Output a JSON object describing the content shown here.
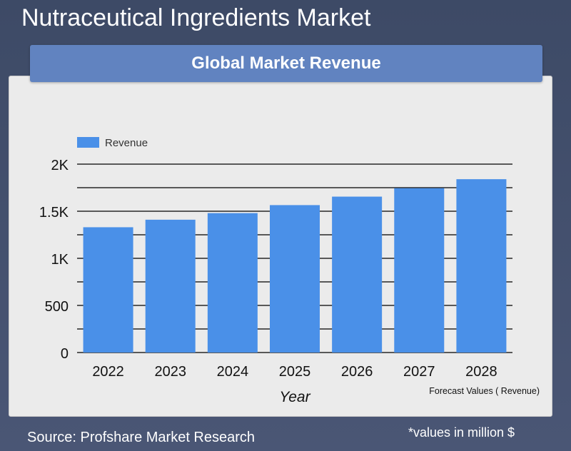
{
  "page": {
    "title": "Nutraceutical Ingredients Market",
    "source": "Source: Profshare Market Research",
    "units_note": "*values in million $"
  },
  "chart_data": {
    "type": "bar",
    "title": "Global Market Revenue",
    "xlabel": "Year",
    "ylabel": "",
    "categories": [
      "2022",
      "2023",
      "2024",
      "2025",
      "2026",
      "2027",
      "2028"
    ],
    "series": [
      {
        "name": "Revenue",
        "color": "#4a90e8",
        "values": [
          1330,
          1410,
          1480,
          1565,
          1655,
          1745,
          1840
        ]
      }
    ],
    "ylim": [
      0,
      2000
    ],
    "yticks": [
      0,
      500,
      1000,
      1500,
      2000
    ],
    "ytick_labels": [
      "0",
      "500",
      "1K",
      "1.5K",
      "2K"
    ],
    "minor_gridlines": true,
    "legend_position": "top-left",
    "annotation": "Forecast Values ( Revenue)"
  }
}
